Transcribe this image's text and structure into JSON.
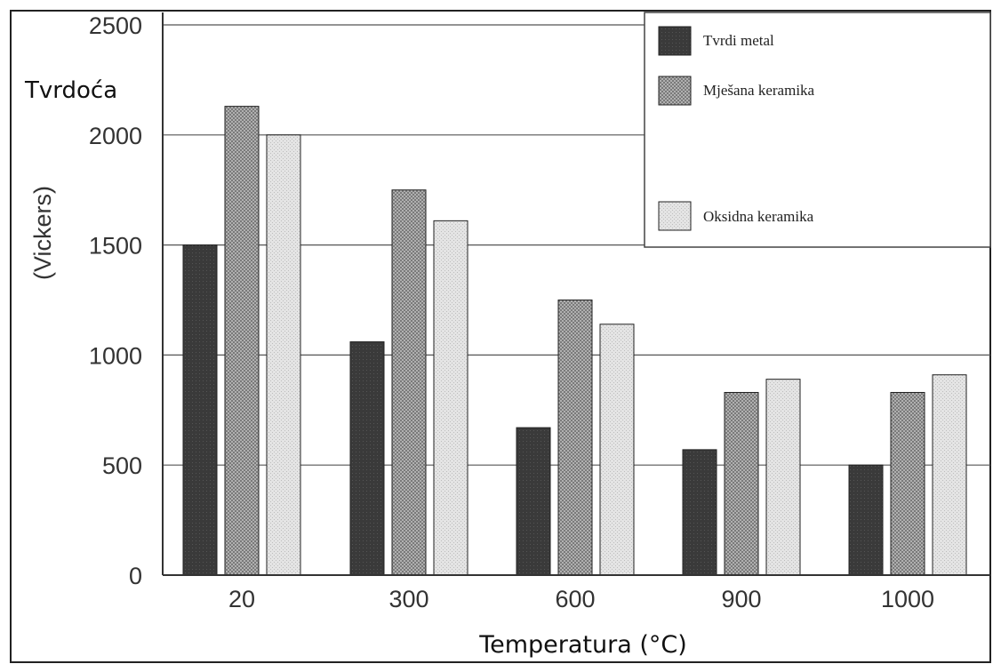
{
  "chart_data": {
    "type": "bar",
    "ylabel_line1": "Tvrdoća",
    "ylabel_line2": "(Vickers)",
    "xlabel": "Temperatura (°C)",
    "categories": [
      "20",
      "300",
      "600",
      "900",
      "1000"
    ],
    "series": [
      {
        "name": "Tvrdi metal",
        "values": [
          1500,
          1060,
          670,
          570,
          500
        ],
        "color": "#3a3a3a"
      },
      {
        "name": "Mješana keramika",
        "values": [
          2130,
          1750,
          1250,
          830,
          830
        ],
        "color": "#8c8c8c"
      },
      {
        "name": "Oksidna keramika",
        "values": [
          2000,
          1610,
          1140,
          890,
          910
        ],
        "color": "#dedede"
      }
    ],
    "yticks": [
      "0",
      "500",
      "1000",
      "1500",
      "2000",
      "2500"
    ],
    "ylim": [
      0,
      2500
    ],
    "grid": true,
    "legend_position": "top-right"
  }
}
